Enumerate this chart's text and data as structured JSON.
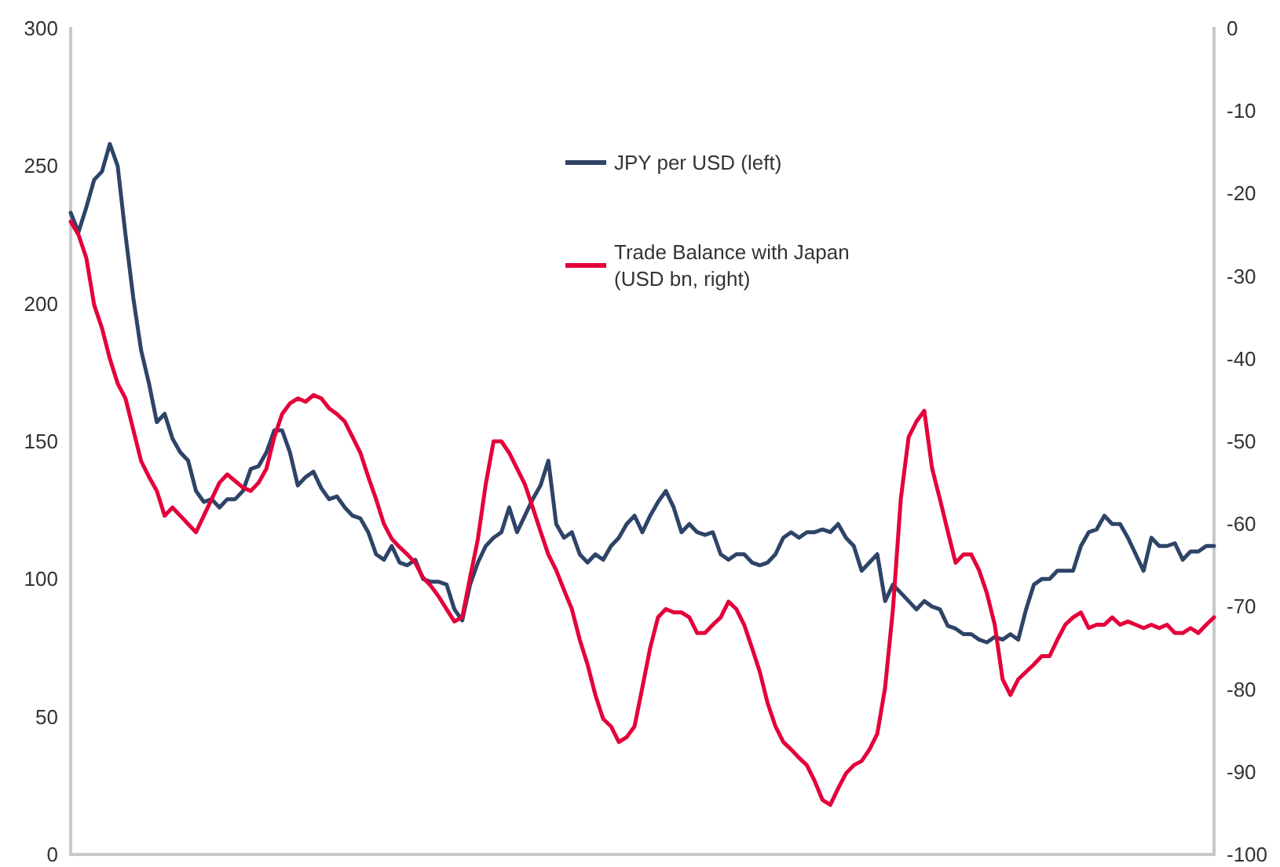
{
  "chart_data": {
    "type": "line",
    "legend": "top",
    "grid": false,
    "marker": "none",
    "line_style": "solid",
    "categories": [
      null,
      null,
      null,
      null,
      null,
      null,
      null,
      null,
      null,
      null,
      null,
      null,
      null,
      null,
      null,
      null,
      null,
      null,
      null,
      null,
      null,
      null,
      null,
      null,
      null,
      null,
      null,
      null,
      null,
      null,
      null,
      null,
      null,
      null,
      null,
      null,
      null,
      null,
      null,
      null,
      null,
      null,
      null,
      null,
      null,
      null,
      null,
      null,
      null,
      null,
      null,
      null,
      null,
      null,
      null,
      null,
      null,
      null,
      null,
      null,
      null,
      null,
      null,
      null,
      null,
      null,
      null,
      null,
      null,
      null,
      null,
      null,
      null,
      null,
      null,
      null,
      null,
      null,
      null,
      null,
      null,
      null,
      null,
      null,
      null,
      null,
      null,
      null,
      null,
      null,
      null,
      null,
      null,
      null,
      null,
      null,
      null,
      null,
      null,
      null,
      null,
      null,
      null,
      null,
      null,
      null,
      null,
      null,
      null,
      null,
      null,
      null,
      null,
      null,
      null,
      null,
      null,
      null,
      null,
      null,
      null,
      null,
      null,
      null,
      null,
      null,
      null,
      null,
      null,
      null,
      null,
      null,
      null,
      null,
      null,
      null,
      null,
      null,
      null,
      null,
      null,
      null,
      null,
      null,
      null,
      null,
      null
    ],
    "ylim": [
      0,
      300
    ],
    "yticks": [
      0,
      50,
      100,
      150,
      200,
      250,
      300
    ],
    "y2lim": [
      -100,
      0
    ],
    "y2ticks": [
      -100,
      -90,
      -80,
      -70,
      -60,
      -50,
      -40,
      -30,
      -20,
      -10,
      0
    ],
    "series": [
      {
        "name": "JPY per USD (left)",
        "color": "#2e4467",
        "values": [
          233,
          226,
          235,
          245,
          248,
          258,
          250,
          225,
          202,
          183,
          171,
          157,
          160,
          151,
          146,
          143,
          132,
          128,
          129,
          126,
          129,
          129,
          132,
          140,
          141,
          146,
          154,
          154,
          146,
          134,
          137,
          139,
          133,
          129,
          130,
          126,
          123,
          122,
          117,
          109,
          107,
          112,
          106,
          105,
          107,
          100,
          99,
          99,
          98,
          89,
          85,
          98,
          106,
          112,
          115,
          117,
          126,
          117,
          123,
          129,
          134,
          143,
          120,
          115,
          117,
          109,
          106,
          109,
          107,
          112,
          115,
          120,
          123,
          117,
          123,
          128,
          132,
          126,
          117,
          120,
          117,
          116,
          117,
          109,
          107,
          109,
          109,
          106,
          105,
          106,
          109,
          115,
          117,
          115,
          117,
          117,
          118,
          117,
          120,
          115,
          112,
          103,
          106,
          109,
          92,
          98,
          95,
          92,
          89,
          92,
          90,
          89,
          83,
          82,
          80,
          80,
          78,
          77,
          79,
          78,
          80,
          78,
          89,
          98,
          100,
          100,
          103,
          103,
          103,
          112,
          117,
          118,
          123,
          120,
          120,
          115,
          109,
          103,
          115,
          112,
          112,
          113,
          107,
          110,
          110,
          112,
          112
        ]
      },
      {
        "name": "Trade Balance with Japan (USD bn, right)",
        "color": "#e4003a",
        "axis": "y2",
        "values": [
          -23.4,
          -25,
          -27.8,
          -33.5,
          -36.3,
          -40,
          -43,
          -44.8,
          -48.6,
          -52.4,
          -54.3,
          -56,
          -59,
          -58,
          -59,
          -60,
          -61,
          -59,
          -57,
          -55,
          -54,
          -54.8,
          -55.6,
          -56,
          -55,
          -53.3,
          -49.5,
          -46.7,
          -45.4,
          -44.8,
          -45.2,
          -44.4,
          -44.8,
          -46,
          -46.7,
          -47.6,
          -49.5,
          -51.4,
          -54.3,
          -57,
          -60,
          -61.8,
          -62.8,
          -63.7,
          -64.7,
          -66.5,
          -67.5,
          -68.8,
          -70.3,
          -71.8,
          -71.3,
          -66.5,
          -61.8,
          -55.2,
          -50,
          -50,
          -51.4,
          -53.3,
          -55.2,
          -58,
          -60.9,
          -63.7,
          -65.6,
          -68,
          -70.3,
          -74,
          -77,
          -80.7,
          -83.6,
          -84.5,
          -86.4,
          -85.8,
          -84.5,
          -79.8,
          -75,
          -71.3,
          -70.3,
          -70.7,
          -70.7,
          -71.3,
          -73.2,
          -73.2,
          -72.2,
          -71.3,
          -69.4,
          -70.3,
          -72.2,
          -75,
          -77.9,
          -81.7,
          -84.5,
          -86.4,
          -87.3,
          -88.3,
          -89.2,
          -91.1,
          -93.4,
          -94,
          -92,
          -90.2,
          -89.2,
          -88.7,
          -87.3,
          -85.4,
          -79.8,
          -70.3,
          -57,
          -49.5,
          -47.6,
          -46.3,
          -53.3,
          -57,
          -60.9,
          -64.7,
          -63.7,
          -63.7,
          -65.6,
          -68.4,
          -72.2,
          -78.8,
          -80.7,
          -78.8,
          -77.9,
          -77,
          -76,
          -76,
          -74,
          -72.2,
          -71.3,
          -70.7,
          -72.6,
          -72.2,
          -72.2,
          -71.3,
          -72.2,
          -71.8,
          -72.2,
          -72.6,
          -72.2,
          -72.6,
          -72.2,
          -73.2,
          -73.2,
          -72.6,
          -73.2,
          -72.2,
          -71.3
        ]
      }
    ]
  }
}
